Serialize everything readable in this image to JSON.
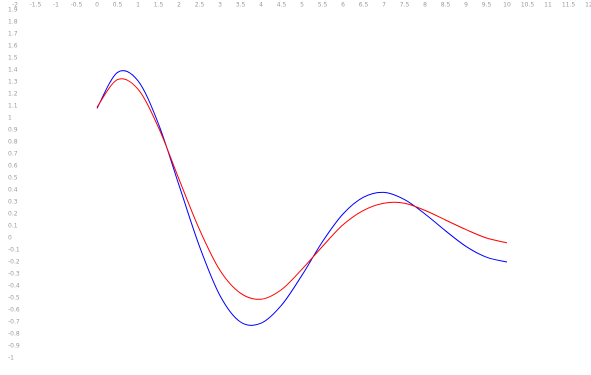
{
  "chart_data": {
    "type": "line",
    "x": [
      0,
      0.5,
      1,
      1.5,
      2,
      2.5,
      3,
      3.5,
      4,
      4.5,
      5,
      5.5,
      6,
      6.5,
      7,
      7.5,
      8,
      8.5,
      9,
      9.5,
      10
    ],
    "series": [
      {
        "color": "#0000ff",
        "values": [
          1.08,
          1.38,
          1.31,
          0.95,
          0.44,
          -0.07,
          -0.48,
          -0.7,
          -0.71,
          -0.56,
          -0.31,
          -0.03,
          0.2,
          0.34,
          0.38,
          0.32,
          0.2,
          0.06,
          -0.07,
          -0.16,
          -0.2
        ]
      },
      {
        "color": "#ff0000",
        "values": [
          1.09,
          1.32,
          1.24,
          0.92,
          0.49,
          0.07,
          -0.27,
          -0.46,
          -0.51,
          -0.43,
          -0.26,
          -0.07,
          0.11,
          0.23,
          0.29,
          0.29,
          0.23,
          0.15,
          0.07,
          0.0,
          -0.04
        ]
      }
    ],
    "xlim": [
      -2,
      12
    ],
    "ylim": [
      -1,
      1.9
    ],
    "xticks": [
      -2,
      -1.5,
      -1,
      -0.5,
      0,
      0.5,
      1,
      1.5,
      2,
      2.5,
      3,
      3.5,
      4,
      4.5,
      5,
      5.5,
      6,
      6.5,
      7,
      7.5,
      8,
      8.5,
      9,
      9.5,
      10,
      10.5,
      11,
      11.5,
      12
    ],
    "yticks": [
      1.9,
      1.8,
      1.7,
      1.6,
      1.5,
      1.4,
      1.3,
      1.2,
      1.1,
      1,
      0.9,
      0.8,
      0.7,
      0.6,
      0.5,
      0.4,
      0.3,
      0.2,
      0.1,
      0,
      -0.1,
      -0.2,
      -0.3,
      -0.4,
      -0.5,
      -0.6,
      -0.7,
      -0.8,
      -0.9,
      -1
    ],
    "grid": false
  }
}
